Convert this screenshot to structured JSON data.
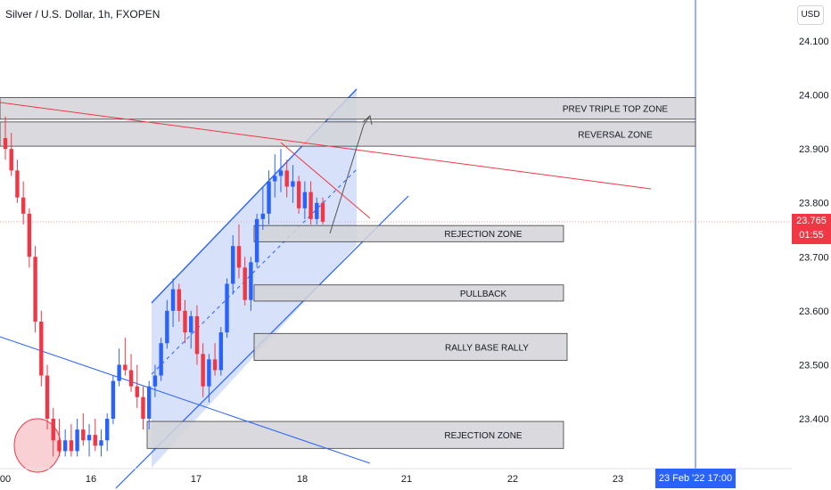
{
  "header": {
    "title": "Silver / U.S. Dollar, 1h, FXOPEN"
  },
  "currency_button": "USD",
  "last_price": {
    "value": "23.765",
    "countdown": "01:55"
  },
  "crosshair_time": "23 Feb '22   17:00",
  "colors": {
    "up": "#2962ff",
    "down": "#f23645",
    "zone_fill": "#d4d4d8",
    "channel_fill": "#b7c9f5",
    "trend_red": "#f23645",
    "trend_blue": "#2962ff"
  },
  "chart_data": {
    "type": "candlestick",
    "title": "Silver / U.S. Dollar, 1h, FXOPEN",
    "y_ticks": [
      "24.100",
      "24.000",
      "23.900",
      "23.800",
      "23.700",
      "23.600",
      "23.500",
      "23.400"
    ],
    "x_ticks": [
      "00",
      "16",
      "17",
      "18",
      "21",
      "22",
      "23"
    ],
    "ylim": [
      23.33,
      24.18
    ],
    "zones": [
      {
        "label": "PREV TRIPLE TOP ZONE",
        "top": 23.995,
        "bottom": 23.955
      },
      {
        "label": "REVERSAL ZONE",
        "top": 23.95,
        "bottom": 23.905
      },
      {
        "label": "REJECTION ZONE",
        "top": 23.758,
        "bottom": 23.728
      },
      {
        "label": "PULLBACK",
        "top": 23.648,
        "bottom": 23.618
      },
      {
        "label": "RALLY BASE RALLY",
        "top": 23.558,
        "bottom": 23.508
      },
      {
        "label": "REJECTION ZONE",
        "top": 23.395,
        "bottom": 23.345
      }
    ],
    "candles": [
      {
        "o": 23.92,
        "h": 23.96,
        "l": 23.88,
        "c": 23.9
      },
      {
        "o": 23.9,
        "h": 23.93,
        "l": 23.85,
        "c": 23.86
      },
      {
        "o": 23.86,
        "h": 23.88,
        "l": 23.8,
        "c": 23.81
      },
      {
        "o": 23.81,
        "h": 23.84,
        "l": 23.76,
        "c": 23.78
      },
      {
        "o": 23.78,
        "h": 23.79,
        "l": 23.68,
        "c": 23.7
      },
      {
        "o": 23.7,
        "h": 23.72,
        "l": 23.56,
        "c": 23.58
      },
      {
        "o": 23.58,
        "h": 23.6,
        "l": 23.46,
        "c": 23.48
      },
      {
        "o": 23.48,
        "h": 23.5,
        "l": 23.38,
        "c": 23.4
      },
      {
        "o": 23.4,
        "h": 23.42,
        "l": 23.33,
        "c": 23.36
      },
      {
        "o": 23.36,
        "h": 23.4,
        "l": 23.33,
        "c": 23.34
      },
      {
        "o": 23.34,
        "h": 23.38,
        "l": 23.33,
        "c": 23.36
      },
      {
        "o": 23.36,
        "h": 23.39,
        "l": 23.33,
        "c": 23.34
      },
      {
        "o": 23.34,
        "h": 23.4,
        "l": 23.33,
        "c": 23.38
      },
      {
        "o": 23.38,
        "h": 23.41,
        "l": 23.35,
        "c": 23.36
      },
      {
        "o": 23.36,
        "h": 23.39,
        "l": 23.33,
        "c": 23.37
      },
      {
        "o": 23.37,
        "h": 23.4,
        "l": 23.34,
        "c": 23.35
      },
      {
        "o": 23.35,
        "h": 23.38,
        "l": 23.33,
        "c": 23.36
      },
      {
        "o": 23.36,
        "h": 23.41,
        "l": 23.34,
        "c": 23.4
      },
      {
        "o": 23.4,
        "h": 23.48,
        "l": 23.39,
        "c": 23.47
      },
      {
        "o": 23.47,
        "h": 23.53,
        "l": 23.46,
        "c": 23.5
      },
      {
        "o": 23.5,
        "h": 23.55,
        "l": 23.48,
        "c": 23.49
      },
      {
        "o": 23.49,
        "h": 23.52,
        "l": 23.45,
        "c": 23.46
      },
      {
        "o": 23.46,
        "h": 23.5,
        "l": 23.42,
        "c": 23.44
      },
      {
        "o": 23.44,
        "h": 23.46,
        "l": 23.38,
        "c": 23.4
      },
      {
        "o": 23.4,
        "h": 23.47,
        "l": 23.38,
        "c": 23.46
      },
      {
        "o": 23.46,
        "h": 23.5,
        "l": 23.44,
        "c": 23.48
      },
      {
        "o": 23.48,
        "h": 23.55,
        "l": 23.47,
        "c": 23.54
      },
      {
        "o": 23.54,
        "h": 23.62,
        "l": 23.53,
        "c": 23.6
      },
      {
        "o": 23.6,
        "h": 23.66,
        "l": 23.57,
        "c": 23.64
      },
      {
        "o": 23.64,
        "h": 23.65,
        "l": 23.58,
        "c": 23.6
      },
      {
        "o": 23.6,
        "h": 23.62,
        "l": 23.54,
        "c": 23.56
      },
      {
        "o": 23.56,
        "h": 23.6,
        "l": 23.53,
        "c": 23.59
      },
      {
        "o": 23.59,
        "h": 23.61,
        "l": 23.5,
        "c": 23.52
      },
      {
        "o": 23.52,
        "h": 23.54,
        "l": 23.44,
        "c": 23.46
      },
      {
        "o": 23.46,
        "h": 23.52,
        "l": 23.43,
        "c": 23.51
      },
      {
        "o": 23.51,
        "h": 23.54,
        "l": 23.48,
        "c": 23.49
      },
      {
        "o": 23.49,
        "h": 23.57,
        "l": 23.48,
        "c": 23.56
      },
      {
        "o": 23.56,
        "h": 23.66,
        "l": 23.55,
        "c": 23.65
      },
      {
        "o": 23.65,
        "h": 23.74,
        "l": 23.63,
        "c": 23.72
      },
      {
        "o": 23.72,
        "h": 23.76,
        "l": 23.66,
        "c": 23.68
      },
      {
        "o": 23.68,
        "h": 23.7,
        "l": 23.61,
        "c": 23.62
      },
      {
        "o": 23.62,
        "h": 23.7,
        "l": 23.6,
        "c": 23.69
      },
      {
        "o": 23.69,
        "h": 23.78,
        "l": 23.68,
        "c": 23.77
      },
      {
        "o": 23.77,
        "h": 23.83,
        "l": 23.75,
        "c": 23.78
      },
      {
        "o": 23.78,
        "h": 23.86,
        "l": 23.76,
        "c": 23.84
      },
      {
        "o": 23.84,
        "h": 23.89,
        "l": 23.81,
        "c": 23.85
      },
      {
        "o": 23.85,
        "h": 23.9,
        "l": 23.82,
        "c": 23.86
      },
      {
        "o": 23.86,
        "h": 23.88,
        "l": 23.81,
        "c": 23.83
      },
      {
        "o": 23.83,
        "h": 23.87,
        "l": 23.8,
        "c": 23.84
      },
      {
        "o": 23.84,
        "h": 23.85,
        "l": 23.78,
        "c": 23.79
      },
      {
        "o": 23.79,
        "h": 23.84,
        "l": 23.77,
        "c": 23.82
      },
      {
        "o": 23.82,
        "h": 23.84,
        "l": 23.76,
        "c": 23.77
      },
      {
        "o": 23.77,
        "h": 23.81,
        "l": 23.76,
        "c": 23.8
      },
      {
        "o": 23.8,
        "h": 23.81,
        "l": 23.76,
        "c": 23.765
      }
    ]
  }
}
